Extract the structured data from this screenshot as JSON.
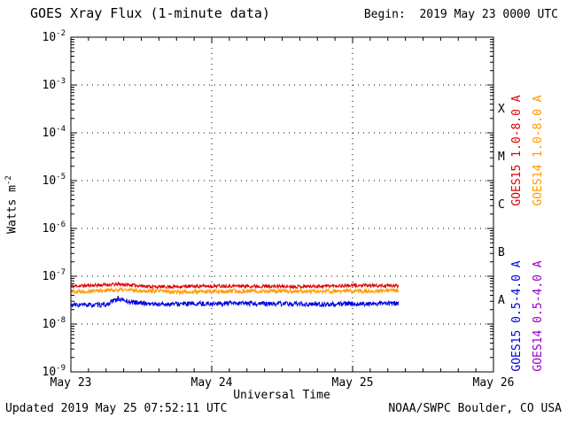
{
  "header": {
    "title": "GOES Xray Flux (1-minute data)",
    "begin": "Begin:  2019 May 23 0000 UTC"
  },
  "footer": {
    "updated": "Updated 2019 May 25 07:52:11 UTC",
    "source": "NOAA/SWPC Boulder, CO USA"
  },
  "axes": {
    "ylabel_base": "Watts m",
    "ylabel_exp": "-2",
    "xlabel": "Universal Time"
  },
  "legend": [
    {
      "label": "GOES15 1.0-8.0 A",
      "color": "#dd0000"
    },
    {
      "label": "GOES14 1.0-8.0 A",
      "color": "#ff9900"
    },
    {
      "label": "GOES15 0.5-4.0 A",
      "color": "#0000dd"
    },
    {
      "label": "GOES14 0.5-4.0 A",
      "color": "#9900cc"
    }
  ],
  "chart_data": {
    "type": "line",
    "title": "GOES Xray Flux (1-minute data)",
    "xlabel": "Universal Time",
    "ylabel": "Watts m^-2",
    "x_tick_labels": [
      "May 23",
      "May 24",
      "May 25",
      "May 26"
    ],
    "x_range_days": [
      0,
      3
    ],
    "y_log_min": -9,
    "y_log_max": -2,
    "grid_vertical_days": [
      1,
      2
    ],
    "grid_horizontal_logs": [
      -8,
      -7,
      -6,
      -5,
      -4,
      -3
    ],
    "flare_classes": [
      {
        "label": "X",
        "log_center": -3.5
      },
      {
        "label": "M",
        "log_center": -4.5
      },
      {
        "label": "C",
        "log_center": -5.5
      },
      {
        "label": "B",
        "log_center": -6.5
      },
      {
        "label": "A",
        "log_center": -7.5
      }
    ],
    "series": [
      {
        "name": "GOES14 1.0-8.0 A",
        "color": "#ff9900",
        "seed": 22,
        "start_day": 0,
        "end_day": 2.327,
        "jitter_log": 0.045,
        "keyframes_day_flux": [
          [
            0,
            4.8e-08
          ],
          [
            0.35,
            5.2e-08
          ],
          [
            0.8,
            4.7e-08
          ],
          [
            1.3,
            4.9e-08
          ],
          [
            1.8,
            4.8e-08
          ],
          [
            2.327,
            5e-08
          ]
        ]
      },
      {
        "name": "GOES15 1.0-8.0 A",
        "color": "#dd0000",
        "seed": 11,
        "start_day": 0,
        "end_day": 2.327,
        "jitter_log": 0.035,
        "keyframes_day_flux": [
          [
            0,
            6.2e-08
          ],
          [
            0.35,
            6.8e-08
          ],
          [
            0.6,
            6e-08
          ],
          [
            1.1,
            6.3e-08
          ],
          [
            1.6,
            6.1e-08
          ],
          [
            2.0,
            6.4e-08
          ],
          [
            2.327,
            6.3e-08
          ]
        ]
      },
      {
        "name": "GOES15 0.5-4.0 A",
        "color": "#0000dd",
        "seed": 33,
        "start_day": 0,
        "end_day": 2.327,
        "jitter_log": 0.05,
        "keyframes_day_flux": [
          [
            0,
            2.5e-08
          ],
          [
            0.25,
            2.5e-08
          ],
          [
            0.33,
            3.4e-08
          ],
          [
            0.42,
            2.9e-08
          ],
          [
            0.6,
            2.6e-08
          ],
          [
            1.2,
            2.7e-08
          ],
          [
            1.8,
            2.6e-08
          ],
          [
            2.327,
            2.7e-08
          ]
        ]
      }
    ]
  }
}
